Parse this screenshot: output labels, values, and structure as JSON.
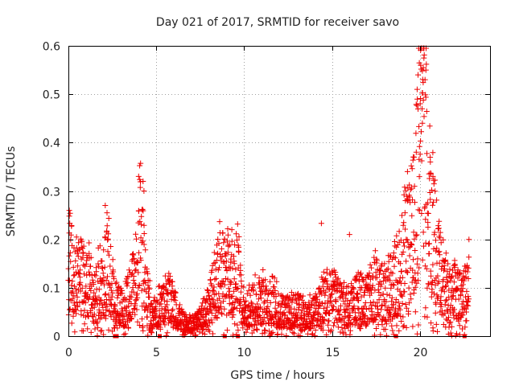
{
  "chart_data": {
    "type": "scatter",
    "title": "Day 021 of 2017, SRMTID for receiver savo",
    "xlabel": "GPS time / hours",
    "ylabel": "SRMTID / TECUs",
    "xlim": [
      0,
      24
    ],
    "ylim": [
      0,
      0.6
    ],
    "xticks": [
      0,
      5,
      10,
      15,
      20
    ],
    "yticks": [
      0,
      0.1,
      0.2,
      0.3,
      0.4,
      0.5,
      0.6
    ],
    "xtick_labels": [
      "0",
      "5",
      "10",
      "15",
      "20"
    ],
    "ytick_labels": [
      "0",
      "0.1",
      "0.2",
      "0.3",
      "0.4",
      "0.5",
      "0.6"
    ],
    "grid": true,
    "marker": "plus",
    "color": "#ee0000",
    "axis_markers_x": [
      2.65,
      2.75,
      5.2,
      8.9,
      9.65,
      18.65,
      22.55
    ],
    "envelope": [
      {
        "x": 0.0,
        "y": 0.25
      },
      {
        "x": 0.3,
        "y": 0.12
      },
      {
        "x": 0.6,
        "y": 0.16
      },
      {
        "x": 1.0,
        "y": 0.14
      },
      {
        "x": 1.5,
        "y": 0.11
      },
      {
        "x": 2.0,
        "y": 0.13
      },
      {
        "x": 2.2,
        "y": 0.18
      },
      {
        "x": 2.7,
        "y": 0.08
      },
      {
        "x": 3.2,
        "y": 0.07
      },
      {
        "x": 3.6,
        "y": 0.12
      },
      {
        "x": 3.9,
        "y": 0.16
      },
      {
        "x": 4.15,
        "y": 0.27
      },
      {
        "x": 4.4,
        "y": 0.15
      },
      {
        "x": 4.7,
        "y": 0.06
      },
      {
        "x": 5.3,
        "y": 0.07
      },
      {
        "x": 5.7,
        "y": 0.1
      },
      {
        "x": 6.2,
        "y": 0.05
      },
      {
        "x": 6.8,
        "y": 0.03
      },
      {
        "x": 7.3,
        "y": 0.035
      },
      {
        "x": 7.8,
        "y": 0.06
      },
      {
        "x": 8.3,
        "y": 0.12
      },
      {
        "x": 8.7,
        "y": 0.17
      },
      {
        "x": 9.2,
        "y": 0.14
      },
      {
        "x": 9.6,
        "y": 0.16
      },
      {
        "x": 10.0,
        "y": 0.06
      },
      {
        "x": 10.5,
        "y": 0.08
      },
      {
        "x": 11.0,
        "y": 0.09
      },
      {
        "x": 11.5,
        "y": 0.085
      },
      {
        "x": 12.0,
        "y": 0.07
      },
      {
        "x": 12.5,
        "y": 0.06
      },
      {
        "x": 13.0,
        "y": 0.07
      },
      {
        "x": 13.5,
        "y": 0.05
      },
      {
        "x": 14.0,
        "y": 0.06
      },
      {
        "x": 14.5,
        "y": 0.09
      },
      {
        "x": 15.0,
        "y": 0.11
      },
      {
        "x": 15.5,
        "y": 0.08
      },
      {
        "x": 16.0,
        "y": 0.07
      },
      {
        "x": 16.5,
        "y": 0.1
      },
      {
        "x": 17.0,
        "y": 0.09
      },
      {
        "x": 17.5,
        "y": 0.12
      },
      {
        "x": 18.0,
        "y": 0.1
      },
      {
        "x": 18.5,
        "y": 0.14
      },
      {
        "x": 19.0,
        "y": 0.2
      },
      {
        "x": 19.4,
        "y": 0.24
      },
      {
        "x": 19.7,
        "y": 0.3
      },
      {
        "x": 19.95,
        "y": 0.42
      },
      {
        "x": 20.15,
        "y": 0.5
      },
      {
        "x": 20.35,
        "y": 0.47
      },
      {
        "x": 20.6,
        "y": 0.33
      },
      {
        "x": 20.9,
        "y": 0.24
      },
      {
        "x": 21.2,
        "y": 0.15
      },
      {
        "x": 21.6,
        "y": 0.1
      },
      {
        "x": 22.0,
        "y": 0.12
      },
      {
        "x": 22.4,
        "y": 0.09
      },
      {
        "x": 22.8,
        "y": 0.14
      }
    ],
    "highlight_points": [
      {
        "x": 0.05,
        "y": 0.26
      },
      {
        "x": 0.08,
        "y": 0.233
      },
      {
        "x": 2.1,
        "y": 0.27
      },
      {
        "x": 2.2,
        "y": 0.255
      },
      {
        "x": 4.0,
        "y": 0.33
      },
      {
        "x": 4.25,
        "y": 0.32
      },
      {
        "x": 4.3,
        "y": 0.3
      },
      {
        "x": 9.3,
        "y": 0.22
      },
      {
        "x": 14.4,
        "y": 0.233
      },
      {
        "x": 16.0,
        "y": 0.21
      },
      {
        "x": 19.9,
        "y": 0.54
      },
      {
        "x": 20.05,
        "y": 0.56
      },
      {
        "x": 20.2,
        "y": 0.555
      },
      {
        "x": 20.35,
        "y": 0.55
      },
      {
        "x": 20.3,
        "y": 0.53
      },
      {
        "x": 19.85,
        "y": 0.51
      },
      {
        "x": 20.15,
        "y": 0.44
      },
      {
        "x": 20.6,
        "y": 0.36
      },
      {
        "x": 20.75,
        "y": 0.33
      },
      {
        "x": 19.3,
        "y": 0.34
      },
      {
        "x": 19.6,
        "y": 0.02
      },
      {
        "x": 22.1,
        "y": 0.005
      },
      {
        "x": 22.8,
        "y": 0.2
      }
    ]
  }
}
